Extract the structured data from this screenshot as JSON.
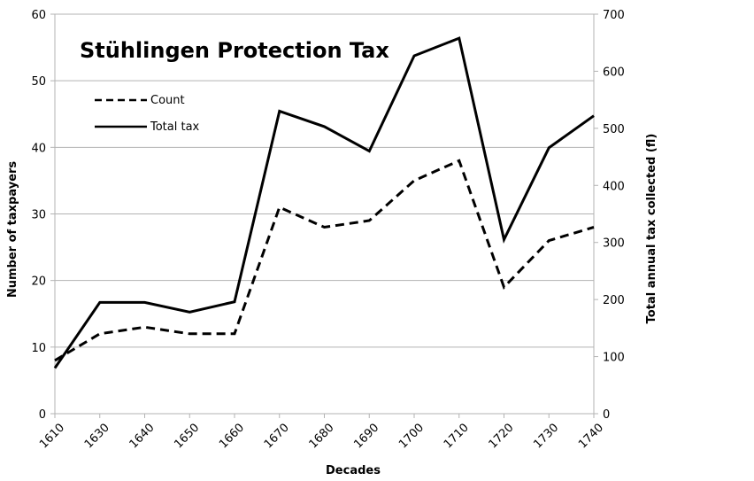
{
  "chart_data": {
    "type": "line",
    "title": "Stühlingen Protection Tax",
    "xlabel": "Decades",
    "ylabel": "Number of taxpayers",
    "y2label": "Total annual tax collected (fl)",
    "categories": [
      "1610",
      "1630",
      "1640",
      "1650",
      "1660",
      "1670",
      "1680",
      "1690",
      "1700",
      "1710",
      "1720",
      "1730",
      "1740"
    ],
    "ylim": [
      0,
      60
    ],
    "y2lim": [
      0,
      700
    ],
    "yticks": [
      0,
      10,
      20,
      30,
      40,
      50,
      60
    ],
    "y2ticks": [
      0,
      100,
      200,
      300,
      400,
      500,
      600,
      700
    ],
    "grid": true,
    "legend_position": "top-left",
    "series": [
      {
        "name": "Count",
        "axis": "left",
        "style": "dashed",
        "values": [
          8,
          12,
          13,
          12,
          12,
          31,
          28,
          29,
          35,
          38,
          19,
          26,
          28
        ]
      },
      {
        "name": "Total tax",
        "axis": "right",
        "style": "solid",
        "values": [
          80,
          195,
          195,
          178,
          196,
          530,
          503,
          460,
          627,
          658,
          305,
          466,
          522
        ]
      }
    ]
  }
}
